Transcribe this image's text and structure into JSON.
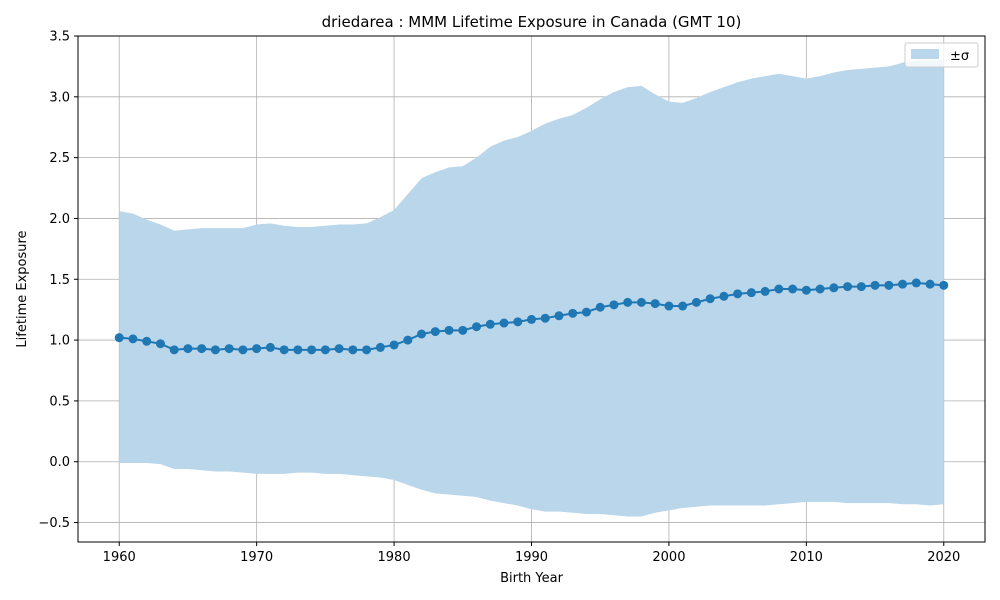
{
  "chart_data": {
    "type": "line",
    "title": "driedarea : MMM Lifetime Exposure in Canada (GMT 10)",
    "xlabel": "Birth Year",
    "ylabel": "Lifetime Exposure",
    "xlim": [
      1957,
      2023
    ],
    "ylim": [
      -0.66,
      3.5
    ],
    "xticks": [
      1960,
      1970,
      1980,
      1990,
      2000,
      2010,
      2020
    ],
    "yticks": [
      -0.5,
      0.0,
      0.5,
      1.0,
      1.5,
      2.0,
      2.5,
      3.0,
      3.5
    ],
    "ytick_labels": [
      "−0.5",
      "0.0",
      "0.5",
      "1.0",
      "1.5",
      "2.0",
      "2.5",
      "3.0",
      "3.5"
    ],
    "grid": true,
    "legend": {
      "placement": "top-right",
      "entries": [
        {
          "label": "±σ",
          "color": "#bad6ea"
        }
      ]
    },
    "colors": {
      "line": "#1f77b4",
      "band": "#bad6ea",
      "grid": "#b0b0b0"
    },
    "x": [
      1960,
      1961,
      1962,
      1963,
      1964,
      1965,
      1966,
      1967,
      1968,
      1969,
      1970,
      1971,
      1972,
      1973,
      1974,
      1975,
      1976,
      1977,
      1978,
      1979,
      1980,
      1981,
      1982,
      1983,
      1984,
      1985,
      1986,
      1987,
      1988,
      1989,
      1990,
      1991,
      1992,
      1993,
      1994,
      1995,
      1996,
      1997,
      1998,
      1999,
      2000,
      2001,
      2002,
      2003,
      2004,
      2005,
      2006,
      2007,
      2008,
      2009,
      2010,
      2011,
      2012,
      2013,
      2014,
      2015,
      2016,
      2017,
      2018,
      2019,
      2020
    ],
    "series": [
      {
        "values": [
          1.02,
          1.01,
          0.99,
          0.97,
          0.92,
          0.93,
          0.93,
          0.92,
          0.93,
          0.92,
          0.93,
          0.94,
          0.92,
          0.92,
          0.92,
          0.92,
          0.93,
          0.92,
          0.92,
          0.94,
          0.96,
          1.0,
          1.05,
          1.07,
          1.08,
          1.08,
          1.11,
          1.13,
          1.14,
          1.15,
          1.17,
          1.18,
          1.2,
          1.22,
          1.23,
          1.27,
          1.29,
          1.31,
          1.31,
          1.3,
          1.28,
          1.28,
          1.31,
          1.34,
          1.36,
          1.38,
          1.39,
          1.4,
          1.42,
          1.42,
          1.41,
          1.42,
          1.43,
          1.44,
          1.44,
          1.45,
          1.45,
          1.46,
          1.47,
          1.46,
          1.45
        ],
        "upper": [
          2.06,
          2.04,
          1.99,
          1.95,
          1.9,
          1.91,
          1.92,
          1.92,
          1.92,
          1.92,
          1.95,
          1.96,
          1.94,
          1.93,
          1.93,
          1.94,
          1.95,
          1.95,
          1.96,
          2.01,
          2.07,
          2.2,
          2.33,
          2.38,
          2.42,
          2.43,
          2.5,
          2.59,
          2.64,
          2.67,
          2.72,
          2.78,
          2.82,
          2.85,
          2.91,
          2.98,
          3.04,
          3.08,
          3.09,
          3.02,
          2.96,
          2.95,
          2.99,
          3.04,
          3.08,
          3.12,
          3.15,
          3.17,
          3.19,
          3.17,
          3.15,
          3.17,
          3.2,
          3.22,
          3.23,
          3.24,
          3.25,
          3.28,
          3.3,
          3.3,
          3.3
        ],
        "lower": [
          -0.01,
          -0.01,
          -0.01,
          -0.02,
          -0.06,
          -0.06,
          -0.07,
          -0.08,
          -0.08,
          -0.09,
          -0.1,
          -0.1,
          -0.1,
          -0.09,
          -0.09,
          -0.1,
          -0.1,
          -0.11,
          -0.12,
          -0.13,
          -0.15,
          -0.19,
          -0.23,
          -0.26,
          -0.27,
          -0.28,
          -0.29,
          -0.32,
          -0.34,
          -0.36,
          -0.39,
          -0.41,
          -0.41,
          -0.42,
          -0.43,
          -0.43,
          -0.44,
          -0.45,
          -0.45,
          -0.42,
          -0.4,
          -0.38,
          -0.37,
          -0.36,
          -0.36,
          -0.36,
          -0.36,
          -0.36,
          -0.35,
          -0.34,
          -0.33,
          -0.33,
          -0.33,
          -0.34,
          -0.34,
          -0.34,
          -0.34,
          -0.35,
          -0.35,
          -0.36,
          -0.35
        ]
      }
    ]
  }
}
